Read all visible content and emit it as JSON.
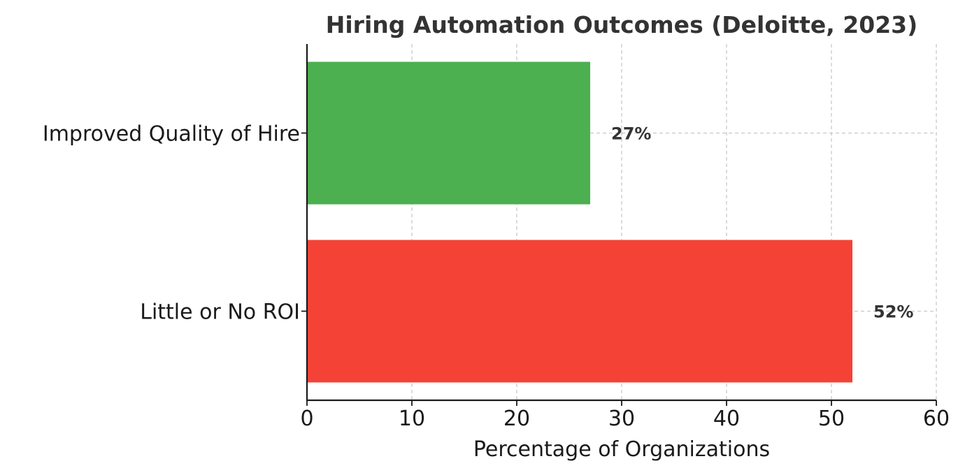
{
  "chart_data": {
    "type": "bar",
    "orientation": "horizontal",
    "title": "Hiring Automation Outcomes (Deloitte, 2023)",
    "xlabel": "Percentage of Organizations",
    "ylabel": "",
    "xlim": [
      0,
      60
    ],
    "xticks": [
      0,
      10,
      20,
      30,
      40,
      50,
      60
    ],
    "categories": [
      "Improved Quality of Hire",
      "Little or No ROI"
    ],
    "values": [
      27,
      52
    ],
    "value_labels": [
      "27%",
      "52%"
    ],
    "colors": [
      "#4caf50",
      "#f44336"
    ],
    "grid": true
  }
}
